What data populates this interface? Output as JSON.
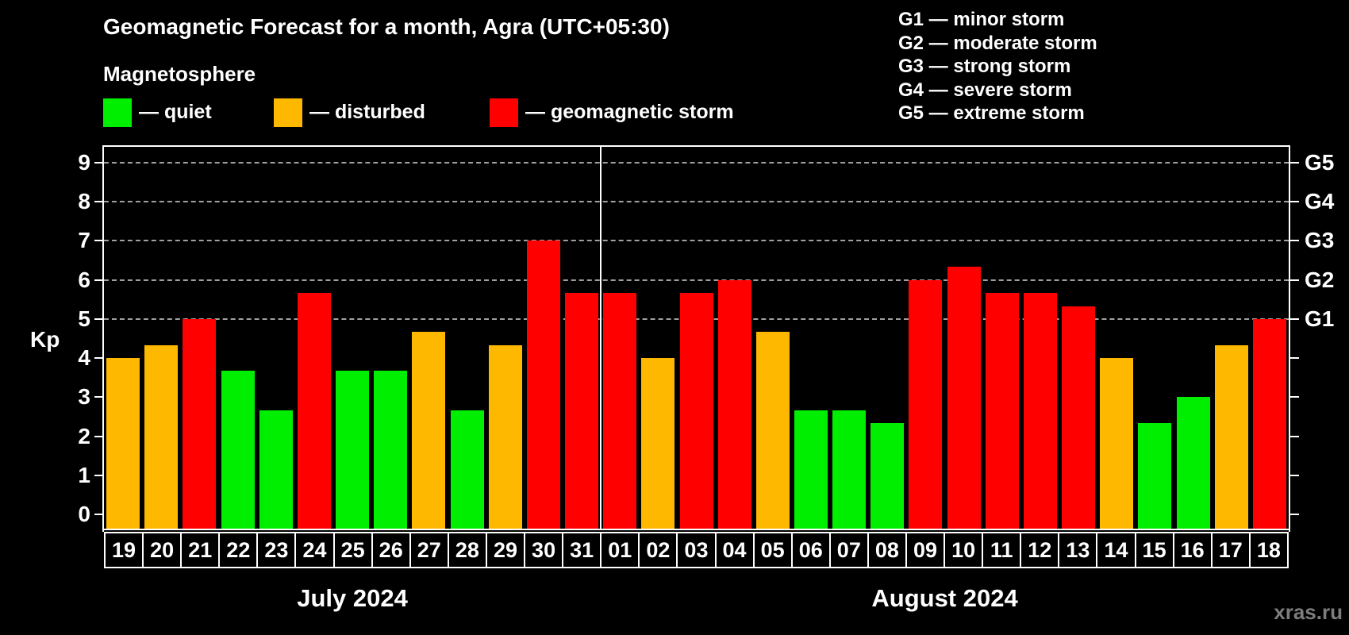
{
  "header": {
    "title": "Geomagnetic Forecast for a month, Agra (UTC+05:30)"
  },
  "magnetosphere_legend": {
    "heading": "Magnetosphere",
    "items": [
      {
        "key": "quiet",
        "label": "— quiet",
        "color": "#00ee00"
      },
      {
        "key": "disturbed",
        "label": "— disturbed",
        "color": "#ffb800"
      },
      {
        "key": "storm",
        "label": "— geomagnetic storm",
        "color": "#ff0000"
      }
    ]
  },
  "storm_scale_legend": {
    "items": [
      "G1 — minor storm",
      "G2 — moderate storm",
      "G3 — strong storm",
      "G4 — severe storm",
      "G5 — extreme storm"
    ]
  },
  "watermark": "xras.ru",
  "chart_data": {
    "type": "bar",
    "title": "Geomagnetic Forecast for a month, Agra (UTC+05:30)",
    "xlabel": "",
    "ylabel": "Kp",
    "ylim": [
      -0.4,
      9.4
    ],
    "y_ticks": [
      0,
      1,
      2,
      3,
      4,
      5,
      6,
      7,
      8,
      9
    ],
    "gridlines_at_kp": [
      5,
      6,
      7,
      8,
      9
    ],
    "grid": "dashed horizontal lines at storm levels G1–G5 only",
    "legend_position": "top-left swatches, storm scale top-right",
    "right_axis_labels": [
      {
        "kp": 5,
        "label": "G1"
      },
      {
        "kp": 6,
        "label": "G2"
      },
      {
        "kp": 7,
        "label": "G3"
      },
      {
        "kp": 8,
        "label": "G4"
      },
      {
        "kp": 9,
        "label": "G5"
      }
    ],
    "color_map": {
      "quiet": "#00ee00",
      "disturbed": "#ffb800",
      "storm": "#ff0000"
    },
    "months": [
      {
        "label": "July 2024",
        "start_index": 0,
        "days": 13
      },
      {
        "label": "August 2024",
        "start_index": 13,
        "days": 18
      }
    ],
    "points": [
      {
        "day": "19",
        "kp": 4.0,
        "status": "disturbed"
      },
      {
        "day": "20",
        "kp": 4.33,
        "status": "disturbed"
      },
      {
        "day": "21",
        "kp": 5.0,
        "status": "storm"
      },
      {
        "day": "22",
        "kp": 3.67,
        "status": "quiet"
      },
      {
        "day": "23",
        "kp": 2.67,
        "status": "quiet"
      },
      {
        "day": "24",
        "kp": 5.67,
        "status": "storm"
      },
      {
        "day": "25",
        "kp": 3.67,
        "status": "quiet"
      },
      {
        "day": "26",
        "kp": 3.67,
        "status": "quiet"
      },
      {
        "day": "27",
        "kp": 4.67,
        "status": "disturbed"
      },
      {
        "day": "28",
        "kp": 2.67,
        "status": "quiet"
      },
      {
        "day": "29",
        "kp": 4.33,
        "status": "disturbed"
      },
      {
        "day": "30",
        "kp": 7.0,
        "status": "storm"
      },
      {
        "day": "31",
        "kp": 5.67,
        "status": "storm"
      },
      {
        "day": "01",
        "kp": 5.67,
        "status": "storm"
      },
      {
        "day": "02",
        "kp": 4.0,
        "status": "disturbed"
      },
      {
        "day": "03",
        "kp": 5.67,
        "status": "storm"
      },
      {
        "day": "04",
        "kp": 6.0,
        "status": "storm"
      },
      {
        "day": "05",
        "kp": 4.67,
        "status": "disturbed"
      },
      {
        "day": "06",
        "kp": 2.67,
        "status": "quiet"
      },
      {
        "day": "07",
        "kp": 2.67,
        "status": "quiet"
      },
      {
        "day": "08",
        "kp": 2.33,
        "status": "quiet"
      },
      {
        "day": "09",
        "kp": 6.0,
        "status": "storm"
      },
      {
        "day": "10",
        "kp": 6.33,
        "status": "storm"
      },
      {
        "day": "11",
        "kp": 5.67,
        "status": "storm"
      },
      {
        "day": "12",
        "kp": 5.67,
        "status": "storm"
      },
      {
        "day": "13",
        "kp": 5.33,
        "status": "storm"
      },
      {
        "day": "14",
        "kp": 4.0,
        "status": "disturbed"
      },
      {
        "day": "15",
        "kp": 2.33,
        "status": "quiet"
      },
      {
        "day": "16",
        "kp": 3.0,
        "status": "quiet"
      },
      {
        "day": "17",
        "kp": 4.33,
        "status": "disturbed"
      },
      {
        "day": "18",
        "kp": 5.0,
        "status": "storm"
      }
    ]
  }
}
